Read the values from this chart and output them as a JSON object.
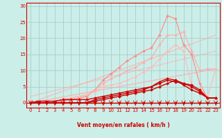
{
  "xlabel": "Vent moyen/en rafales ( km/h )",
  "bg_color": "#cceee8",
  "grid_color": "#aacccc",
  "axis_color": "#cc0000",
  "text_color": "#cc0000",
  "xlim": [
    -0.5,
    23.5
  ],
  "ylim": [
    -1.5,
    31
  ],
  "yticks": [
    0,
    5,
    10,
    15,
    20,
    25,
    30
  ],
  "xticks": [
    0,
    1,
    2,
    3,
    4,
    5,
    6,
    7,
    8,
    9,
    10,
    11,
    12,
    13,
    14,
    15,
    16,
    17,
    18,
    19,
    20,
    21,
    22,
    23
  ],
  "series": [
    {
      "x": [
        0,
        23
      ],
      "y": [
        0,
        10.5
      ],
      "color": "#ffaaaa",
      "alpha": 0.85,
      "lw": 0.9,
      "marker": null
    },
    {
      "x": [
        0,
        23
      ],
      "y": [
        0,
        21
      ],
      "color": "#ffaaaa",
      "alpha": 0.7,
      "lw": 0.9,
      "marker": null
    },
    {
      "x": [
        0,
        23
      ],
      "y": [
        2,
        16
      ],
      "color": "#ffaaaa",
      "alpha": 0.6,
      "lw": 0.9,
      "marker": null
    },
    {
      "x": [
        0,
        1,
        2,
        3,
        4,
        5,
        6,
        7,
        8,
        9,
        10,
        11,
        12,
        13,
        14,
        15,
        16,
        17,
        18,
        19,
        20,
        21,
        22,
        23
      ],
      "y": [
        0.5,
        0,
        0,
        0.5,
        0.5,
        1,
        1.5,
        2,
        4,
        7,
        9,
        11,
        13,
        14.5,
        16,
        17,
        21,
        27,
        26,
        18,
        15,
        6,
        1.5,
        1.5
      ],
      "color": "#ff8888",
      "alpha": 0.85,
      "lw": 1.0,
      "marker": "D",
      "ms": 2.0
    },
    {
      "x": [
        0,
        1,
        2,
        3,
        4,
        5,
        6,
        7,
        8,
        9,
        10,
        11,
        12,
        13,
        14,
        15,
        16,
        17,
        18,
        19,
        20,
        21,
        22,
        23
      ],
      "y": [
        0,
        0,
        0,
        0.5,
        1,
        1.5,
        2,
        2.5,
        4,
        6,
        7.5,
        8.5,
        10,
        11,
        12.5,
        14,
        18,
        21,
        21,
        22,
        16,
        10,
        10.5,
        10.5
      ],
      "color": "#ffaaaa",
      "alpha": 0.8,
      "lw": 1.0,
      "marker": "D",
      "ms": 2.0
    },
    {
      "x": [
        0,
        1,
        2,
        3,
        4,
        5,
        6,
        7,
        8,
        9,
        10,
        11,
        12,
        13,
        14,
        15,
        16,
        17,
        18,
        19,
        20,
        21,
        22,
        23
      ],
      "y": [
        0,
        0,
        0,
        0.5,
        1,
        1.5,
        2,
        2.5,
        3.5,
        5,
        5.5,
        6,
        7,
        8,
        9.5,
        11,
        13.5,
        16,
        18,
        16,
        5.5,
        4,
        2,
        10.5
      ],
      "color": "#ffbbbb",
      "alpha": 0.9,
      "lw": 1.0,
      "marker": "D",
      "ms": 2.0
    },
    {
      "x": [
        0,
        1,
        2,
        3,
        4,
        5,
        6,
        7,
        8,
        9,
        10,
        11,
        12,
        13,
        14,
        15,
        16,
        17,
        18,
        19,
        20,
        21,
        22,
        23
      ],
      "y": [
        0,
        0.5,
        0.5,
        0.5,
        1,
        1,
        1,
        1,
        1.5,
        2,
        2.5,
        3,
        3.5,
        4,
        4.5,
        5,
        6.5,
        7.5,
        7,
        6,
        5.5,
        4,
        1.5,
        1.5
      ],
      "color": "#cc0000",
      "alpha": 1.0,
      "lw": 1.0,
      "marker": "D",
      "ms": 2.0
    },
    {
      "x": [
        0,
        1,
        2,
        3,
        4,
        5,
        6,
        7,
        8,
        9,
        10,
        11,
        12,
        13,
        14,
        15,
        16,
        17,
        18,
        19,
        20,
        21,
        22,
        23
      ],
      "y": [
        0,
        0,
        0,
        0,
        0,
        0,
        0,
        0,
        1,
        1.5,
        2,
        2.5,
        3,
        3.5,
        4,
        5,
        6,
        7,
        6.5,
        6,
        5,
        3.5,
        1.5,
        1.5
      ],
      "color": "#cc0000",
      "alpha": 1.0,
      "lw": 1.0,
      "marker": "D",
      "ms": 2.0
    },
    {
      "x": [
        0,
        1,
        2,
        3,
        4,
        5,
        6,
        7,
        8,
        9,
        10,
        11,
        12,
        13,
        14,
        15,
        16,
        17,
        18,
        19,
        20,
        21,
        22,
        23
      ],
      "y": [
        0,
        0,
        0,
        0,
        0,
        0,
        0,
        0,
        0.5,
        1,
        1.5,
        2,
        2.5,
        3,
        3.5,
        4,
        5,
        6,
        7,
        5.5,
        4,
        3,
        1.5,
        1.5
      ],
      "color": "#cc0000",
      "alpha": 1.0,
      "lw": 1.0,
      "marker": "D",
      "ms": 2.0
    },
    {
      "x": [
        0,
        1,
        2,
        3,
        4,
        5,
        6,
        7,
        8,
        9,
        10,
        11,
        12,
        13,
        14,
        15,
        16,
        17,
        18,
        19,
        20,
        21,
        22,
        23
      ],
      "y": [
        0,
        0,
        0,
        0,
        0,
        0,
        0,
        0,
        0,
        0,
        0,
        0,
        0,
        0,
        0,
        0,
        0,
        0,
        0,
        0,
        0,
        0,
        0,
        0
      ],
      "color": "#cc0000",
      "alpha": 1.0,
      "lw": 1.0,
      "marker": "D",
      "ms": 2.0
    }
  ]
}
